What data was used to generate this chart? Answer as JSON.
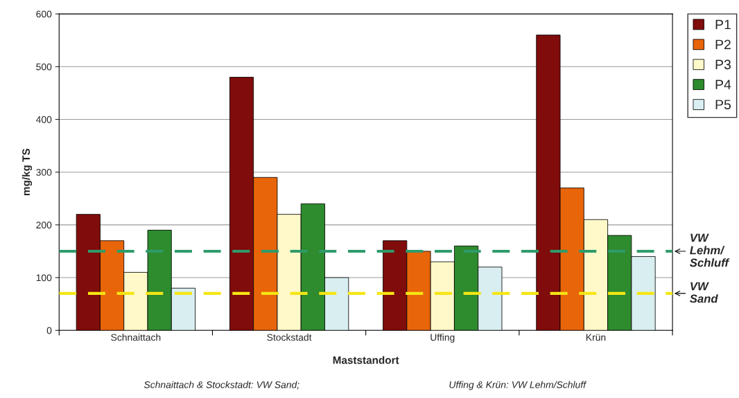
{
  "chart_data": {
    "type": "bar",
    "xlabel": "Maststandort",
    "ylabel": "mg/kg TS",
    "categories": [
      "Schnaittach",
      "Stockstadt",
      "Uffing",
      "Krün"
    ],
    "series": [
      {
        "name": "P1",
        "color": "#800c0c",
        "values": [
          220,
          480,
          170,
          560
        ]
      },
      {
        "name": "P2",
        "color": "#e8650a",
        "values": [
          170,
          290,
          150,
          270
        ]
      },
      {
        "name": "P3",
        "color": "#fff8c8",
        "values": [
          110,
          220,
          130,
          210
        ]
      },
      {
        "name": "P4",
        "color": "#2e8b2e",
        "values": [
          190,
          240,
          160,
          180
        ]
      },
      {
        "name": "P5",
        "color": "#d9eef0",
        "values": [
          80,
          100,
          120,
          140
        ]
      }
    ],
    "ylim": [
      0,
      600
    ],
    "yticks": [
      0,
      100,
      200,
      300,
      400,
      500,
      600
    ],
    "grid": "y",
    "legend": "top right",
    "ref_lines": [
      {
        "axis": "y",
        "value": 150,
        "label": "VW\nLehm/\nSchluff",
        "color": "#2e9b6a",
        "line_style": "dashed"
      },
      {
        "axis": "y",
        "value": 70,
        "label": "VW\nSand",
        "color": "#f5e614",
        "line_style": "dashed"
      }
    ],
    "annotations": [
      "Schnaittach & Stockstadt: VW Sand;",
      "Uffing & Krün: VW Lehm/Schluff"
    ]
  }
}
